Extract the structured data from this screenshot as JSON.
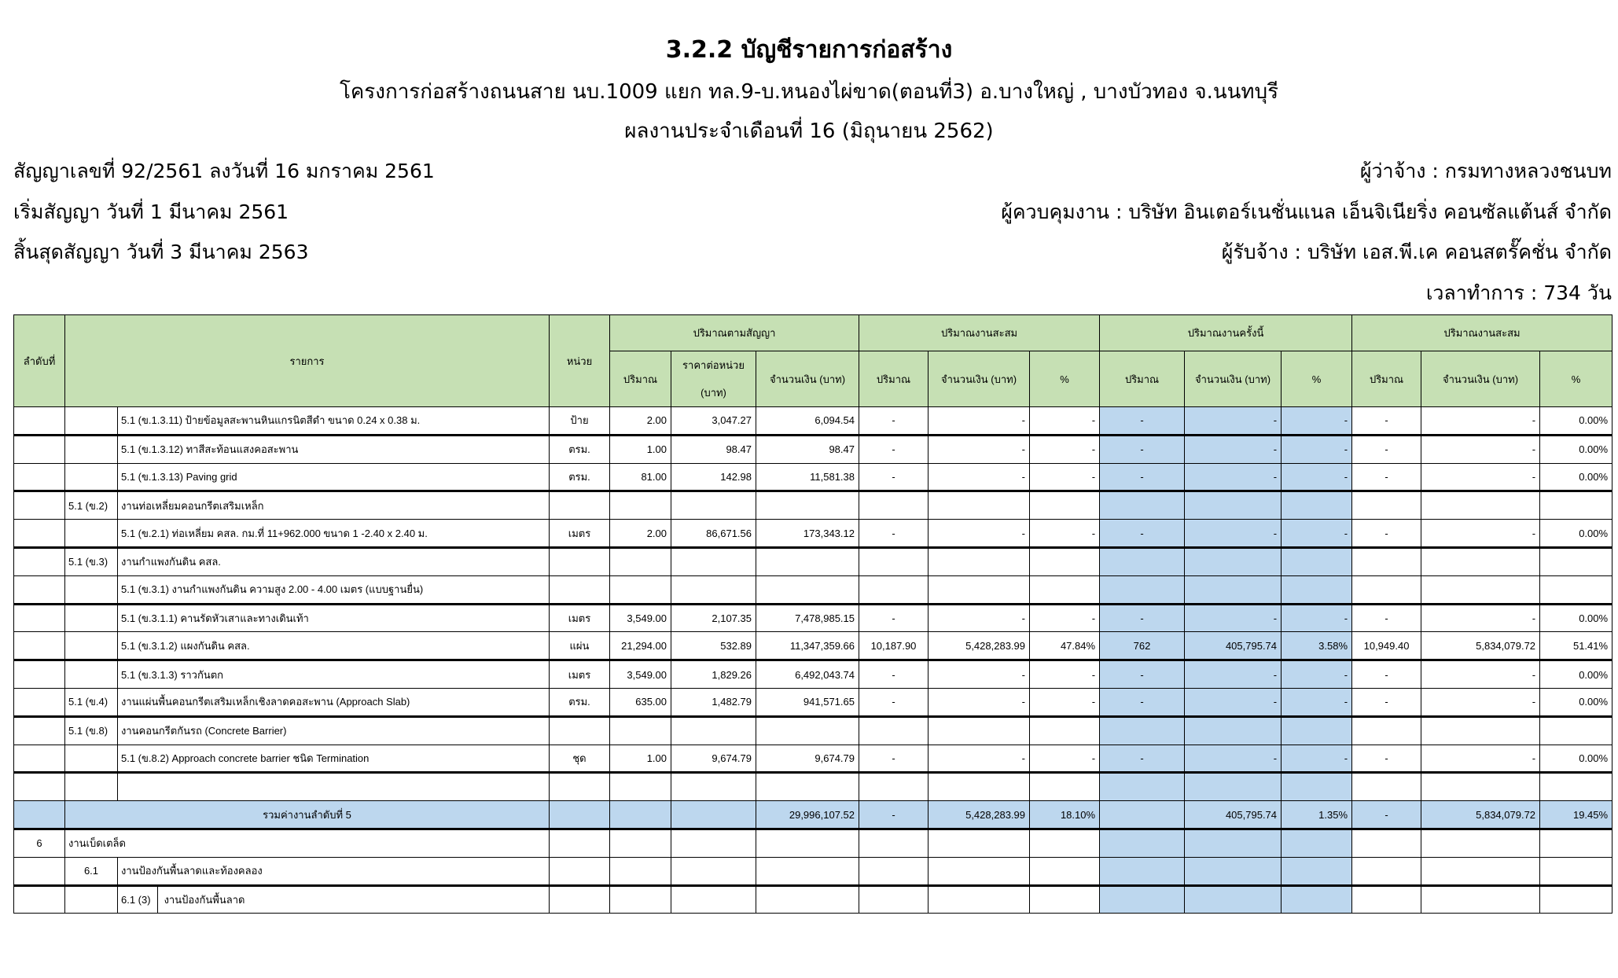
{
  "header": {
    "title": "3.2.2 บัญชีรายการก่อสร้าง",
    "project": "โครงการก่อสร้างถนนสาย นบ.1009 แยก ทล.9-บ.หนองไผ่ขาด(ตอนที่3)  อ.บางใหญ่ , บางบัวทอง จ.นนทบุรี",
    "period": "ผลงานประจำเดือนที่ 16 (มิถุนายน 2562)",
    "contract_no": "สัญญาเลขที่ 92/2561 ลงวันที่ 16 มกราคม 2561",
    "contract_start": "เริ่มสัญญา  วันที่ 1 มีนาคม 2561",
    "contract_end": "สิ้นสุดสัญญา  วันที่ 3 มีนาคม 2563",
    "employer": "ผู้ว่าจ้าง : กรมทางหลวงชนบท",
    "supervisor": "ผู้ควบคุมงาน : บริษัท อินเตอร์เนชั่นแนล เอ็นจิเนียริ่ง คอนซัลแต้นส์ จำกัด",
    "contractor": "ผู้รับจ้าง : บริษัท เอส.พี.เค คอนสตรั๊คชั่น จำกัด",
    "duration": "เวลาทำการ : 734 วัน"
  },
  "colors": {
    "header_green": "#c6e0b4",
    "highlight_blue": "#bdd7ee"
  },
  "table": {
    "headers": {
      "no": "ลำดับที่",
      "item": "รายการ",
      "unit": "หน่วย",
      "contract": "ปริมาณตามสัญญา",
      "accumulated": "ปริมาณงานสะสม",
      "current": "ปริมาณงานครั้งนี้",
      "total": "ปริมาณงานสะสม",
      "qty": "ปริมาณ",
      "unit_price": "ราคาต่อหน่วย",
      "unit_price_2": "(บาท)",
      "amount": "จำนวนเงิน (บาท)",
      "pct": "%"
    },
    "rows": [
      {
        "no": "",
        "code": "",
        "desc": "5.1 (ข.1.3.11)  ป้ายข้อมูลสะพานหินแกรนิตสีดำ ขนาด 0.24 x 0.38 ม.",
        "unit": "ป้าย",
        "qty": "2.00",
        "price": "3,047.27",
        "amount": "6,094.54",
        "aq": "-",
        "aa": "-",
        "ap": "-",
        "cq": "-",
        "ca": "-",
        "cp": "-",
        "tq": "-",
        "ta": "-",
        "tp": "0.00%",
        "thick": true
      },
      {
        "no": "",
        "code": "",
        "desc": "5.1 (ข.1.3.12)  ทาสีสะท้อนแสงคอสะพาน",
        "unit": "ตรม.",
        "qty": "1.00",
        "price": "98.47",
        "amount": "98.47",
        "aq": "-",
        "aa": "-",
        "ap": "-",
        "cq": "-",
        "ca": "-",
        "cp": "-",
        "tq": "-",
        "ta": "-",
        "tp": "0.00%"
      },
      {
        "no": "",
        "code": "",
        "desc": "5.1 (ข.1.3.13)  Paving grid",
        "unit": "ตรม.",
        "qty": "81.00",
        "price": "142.98",
        "amount": "11,581.38",
        "aq": "-",
        "aa": "-",
        "ap": "-",
        "cq": "-",
        "ca": "-",
        "cp": "-",
        "tq": "-",
        "ta": "-",
        "tp": "0.00%",
        "thick": true
      },
      {
        "no": "",
        "code": "5.1 (ข.2)",
        "desc": "งานท่อเหลี่ยมคอนกรีตเสริมเหล็ก"
      },
      {
        "no": "",
        "code": "",
        "desc": "5.1 (ข.2.1) ท่อเหลี่ยม คสล. กม.ที่ 11+962.000 ขนาด 1 -2.40 x 2.40 ม.",
        "unit": "เมตร",
        "qty": "2.00",
        "price": "86,671.56",
        "amount": "173,343.12",
        "aq": "-",
        "aa": "-",
        "ap": "-",
        "cq": "-",
        "ca": "-",
        "cp": "-",
        "tq": "-",
        "ta": "-",
        "tp": "0.00%",
        "thick": true
      },
      {
        "no": "",
        "code": "5.1 (ข.3)",
        "desc": "งานกำแพงกันดิน คสล."
      },
      {
        "no": "",
        "code": "",
        "desc": "5.1 (ข.3.1) งานกำแพงกันดิน ความสูง 2.00 - 4.00 เมตร (แบบฐานยื่น)",
        "thick": true
      },
      {
        "no": "",
        "code": "",
        "desc": "5.1 (ข.3.1.1)  คานรัดหัวเสาและทางเดินเท้า",
        "unit": "เมตร",
        "qty": "3,549.00",
        "price": "2,107.35",
        "amount": "7,478,985.15",
        "aq": "-",
        "aa": "-",
        "ap": "-",
        "cq": "-",
        "ca": "-",
        "cp": "-",
        "tq": "-",
        "ta": "-",
        "tp": "0.00%"
      },
      {
        "no": "",
        "code": "",
        "desc": "5.1 (ข.3.1.2)  แผงกันดิน คสล.",
        "unit": "แผ่น",
        "qty": "21,294.00",
        "price": "532.89",
        "amount": "11,347,359.66",
        "aq": "10,187.90",
        "aa": "5,428,283.99",
        "ap": "47.84%",
        "cq": "762",
        "ca": "405,795.74",
        "cp": "3.58%",
        "tq": "10,949.40",
        "ta": "5,834,079.72",
        "tp": "51.41%",
        "thick": true
      },
      {
        "no": "",
        "code": "",
        "desc": "5.1 (ข.3.1.3)  ราวกันตก",
        "unit": "เมตร",
        "qty": "3,549.00",
        "price": "1,829.26",
        "amount": "6,492,043.74",
        "aq": "-",
        "aa": "-",
        "ap": "-",
        "cq": "-",
        "ca": "-",
        "cp": "-",
        "tq": "-",
        "ta": "-",
        "tp": "0.00%"
      },
      {
        "no": "",
        "code": "5.1 (ข.4)",
        "desc": "งานแผ่นพื้นคอนกรีตเสริมเหล็กเชิงลาดคอสะพาน (Approach Slab)",
        "unit": "ตรม.",
        "qty": "635.00",
        "price": "1,482.79",
        "amount": "941,571.65",
        "aq": "-",
        "aa": "-",
        "ap": "-",
        "cq": "-",
        "ca": "-",
        "cp": "-",
        "tq": "-",
        "ta": "-",
        "tp": "0.00%",
        "thick": true
      },
      {
        "no": "",
        "code": "5.1 (ข.8)",
        "desc": "งานคอนกรีตกันรถ (Concrete Barrier)"
      },
      {
        "no": "",
        "code": "",
        "desc": "5.1 (ข.8.2) Approach concrete barrier ชนิด Termination",
        "unit": "ชุด",
        "qty": "1.00",
        "price": "9,674.79",
        "amount": "9,674.79",
        "aq": "-",
        "aa": "-",
        "ap": "-",
        "cq": "-",
        "ca": "-",
        "cp": "-",
        "tq": "-",
        "ta": "-",
        "tp": "0.00%",
        "thick": true
      },
      {
        "no": "",
        "code": "",
        "desc": ""
      },
      {
        "total": true,
        "desc": "รวมค่างานลำดับที่ 5",
        "amount": "29,996,107.52",
        "aq": "-",
        "aa": "5,428,283.99",
        "ap": "18.10%",
        "cq": "",
        "ca": "405,795.74",
        "cp": "1.35%",
        "tq": "-",
        "ta": "5,834,079.72",
        "tp": "19.45%",
        "thick": true
      },
      {
        "no": "6",
        "span": true,
        "desc": "งานเบ็ดเตล็ด"
      },
      {
        "no": "",
        "code": "6.1",
        "desc": "งานป้องกันพื้นลาดและท้องคลอง",
        "thick": true
      },
      {
        "no": "",
        "code": "",
        "sub": "6.1 (3)",
        "desc": "งานป้องกันพื้นลาด"
      }
    ]
  }
}
